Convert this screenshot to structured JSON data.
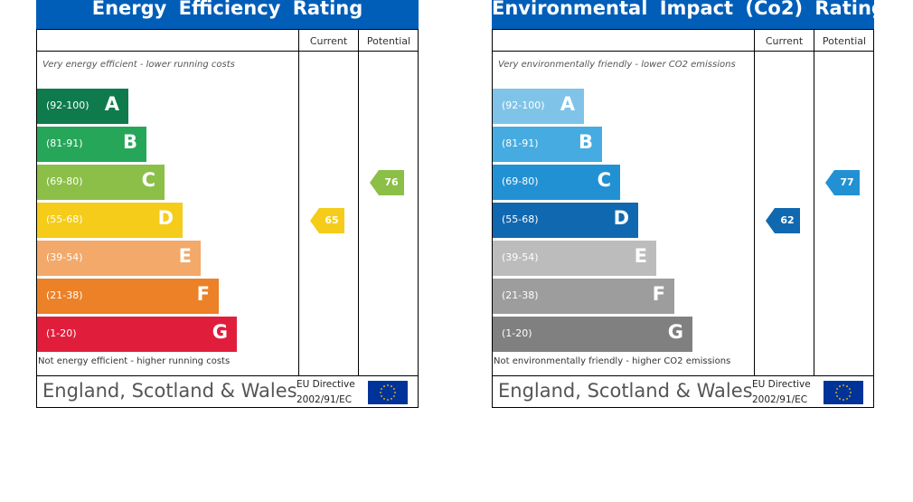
{
  "header_labels": {
    "current": "Current",
    "potential": "Potential"
  },
  "footer": {
    "region": "England, Scotland & Wales",
    "directive_line1": "EU Directive",
    "directive_line2": "2002/91/EC",
    "flag_icon": "eu-flag-icon"
  },
  "panels": [
    {
      "title": "Energy  Efficiency  Rating",
      "top_note": "Very energy efficient - lower running costs",
      "bottom_note": "Not energy efficient - higher running costs",
      "bands": [
        {
          "range": "(92-100)",
          "letter": "A",
          "color": "#0f7b4d"
        },
        {
          "range": "(81-91)",
          "letter": "B",
          "color": "#26a659"
        },
        {
          "range": "(69-80)",
          "letter": "C",
          "color": "#8cbf47"
        },
        {
          "range": "(55-68)",
          "letter": "D",
          "color": "#f5cc19"
        },
        {
          "range": "(39-54)",
          "letter": "E",
          "color": "#f2a96a"
        },
        {
          "range": "(21-38)",
          "letter": "F",
          "color": "#ec8128"
        },
        {
          "range": "(1-20)",
          "letter": "G",
          "color": "#e01e3c"
        }
      ],
      "current": {
        "value": "65",
        "color": "#f5cc19"
      },
      "potential": {
        "value": "76",
        "color": "#8cbf47"
      }
    },
    {
      "title": "Environmental  Impact  (Co2)  Rating",
      "top_note": "Very environmentally friendly - lower CO2 emissions",
      "bottom_note": "Not environmentally friendly - higher CO2 emissions",
      "bands": [
        {
          "range": "(92-100)",
          "letter": "A",
          "color": "#7fc4e8"
        },
        {
          "range": "(81-91)",
          "letter": "B",
          "color": "#45abe0"
        },
        {
          "range": "(69-80)",
          "letter": "C",
          "color": "#2291d4"
        },
        {
          "range": "(55-68)",
          "letter": "D",
          "color": "#1068b0"
        },
        {
          "range": "(39-54)",
          "letter": "E",
          "color": "#bcbcbc"
        },
        {
          "range": "(21-38)",
          "letter": "F",
          "color": "#9d9d9d"
        },
        {
          "range": "(1-20)",
          "letter": "G",
          "color": "#808080"
        }
      ],
      "current": {
        "value": "62",
        "color": "#1068b0"
      },
      "potential": {
        "value": "77",
        "color": "#2291d4"
      }
    }
  ],
  "chart_data": [
    {
      "type": "bar",
      "title": "Energy  Efficiency  Rating",
      "categories": [
        "A",
        "B",
        "C",
        "D",
        "E",
        "F",
        "G"
      ],
      "ranges": [
        "(92-100)",
        "(81-91)",
        "(69-80)",
        "(55-68)",
        "(39-54)",
        "(21-38)",
        "(1-20)"
      ],
      "current": 65,
      "potential": 76
    },
    {
      "type": "bar",
      "title": "Environmental  Impact  (Co2)  Rating",
      "categories": [
        "A",
        "B",
        "C",
        "D",
        "E",
        "F",
        "G"
      ],
      "ranges": [
        "(92-100)",
        "(81-91)",
        "(69-80)",
        "(55-68)",
        "(39-54)",
        "(21-38)",
        "(1-20)"
      ],
      "current": 62,
      "potential": 77
    }
  ]
}
